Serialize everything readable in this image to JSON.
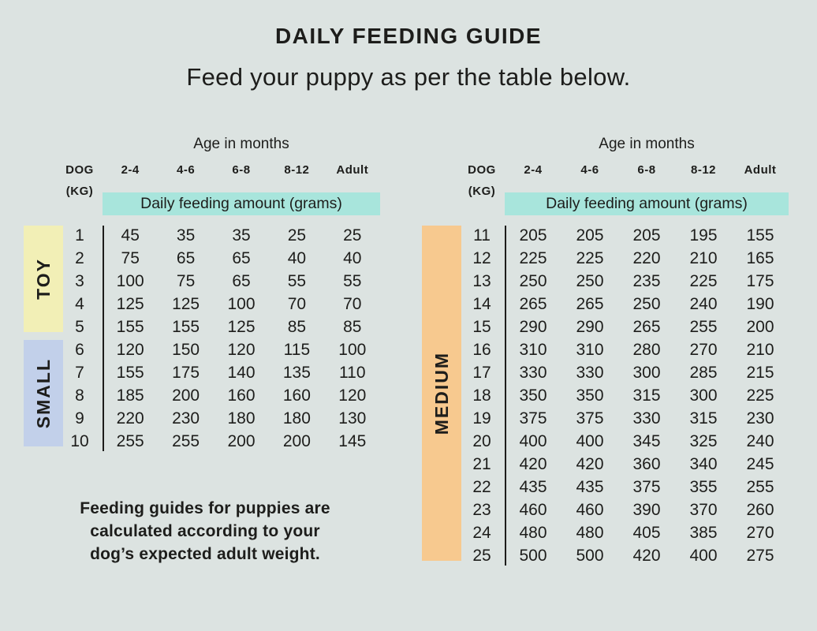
{
  "header": {
    "title": "DAILY FEEDING GUIDE",
    "subtitle": "Feed your puppy as per the table below."
  },
  "footer": {
    "lines": [
      "Feeding guides for puppies are",
      "calculated according to your",
      "dog’s expected adult weight."
    ]
  },
  "colors": {
    "background": "#dce3e1",
    "text": "#1d1d1b",
    "banner_bg": "#a8e5dc",
    "toy_bg": "#f2efb6",
    "small_bg": "#c2d0ea",
    "medium_bg": "#f7c98f"
  },
  "chart_data": {
    "type": "table",
    "title": "DAILY FEEDING GUIDE",
    "subtitle": "Feed your puppy as per the table below.",
    "age_axis_label": "Age in months",
    "weight_column_label": "DOG",
    "weight_unit_label": "(KG)",
    "age_columns": [
      "2-4",
      "4-6",
      "6-8",
      "8-12",
      "Adult"
    ],
    "units_banner": "Daily feeding amount (grams)",
    "size_groups": [
      {
        "name": "TOY",
        "panel": "left",
        "color_key": "toy_bg",
        "rows": [
          {
            "kg": 1,
            "values": [
              45,
              35,
              35,
              25,
              25
            ]
          },
          {
            "kg": 2,
            "values": [
              75,
              65,
              65,
              40,
              40
            ]
          },
          {
            "kg": 3,
            "values": [
              100,
              75,
              65,
              55,
              55
            ]
          },
          {
            "kg": 4,
            "values": [
              125,
              125,
              100,
              70,
              70
            ]
          },
          {
            "kg": 5,
            "values": [
              155,
              155,
              125,
              85,
              85
            ]
          }
        ]
      },
      {
        "name": "SMALL",
        "panel": "left",
        "color_key": "small_bg",
        "rows": [
          {
            "kg": 6,
            "values": [
              120,
              150,
              120,
              115,
              100
            ]
          },
          {
            "kg": 7,
            "values": [
              155,
              175,
              140,
              135,
              110
            ]
          },
          {
            "kg": 8,
            "values": [
              185,
              200,
              160,
              160,
              120
            ]
          },
          {
            "kg": 9,
            "values": [
              220,
              230,
              180,
              180,
              130
            ]
          },
          {
            "kg": 10,
            "values": [
              255,
              255,
              200,
              200,
              145
            ]
          }
        ]
      },
      {
        "name": "MEDIUM",
        "panel": "right",
        "color_key": "medium_bg",
        "rows": [
          {
            "kg": 11,
            "values": [
              205,
              205,
              205,
              195,
              155
            ]
          },
          {
            "kg": 12,
            "values": [
              225,
              225,
              220,
              210,
              165
            ]
          },
          {
            "kg": 13,
            "values": [
              250,
              250,
              235,
              225,
              175
            ]
          },
          {
            "kg": 14,
            "values": [
              265,
              265,
              250,
              240,
              190
            ]
          },
          {
            "kg": 15,
            "values": [
              290,
              290,
              265,
              255,
              200
            ]
          },
          {
            "kg": 16,
            "values": [
              310,
              310,
              280,
              270,
              210
            ]
          },
          {
            "kg": 17,
            "values": [
              330,
              330,
              300,
              285,
              215
            ]
          },
          {
            "kg": 18,
            "values": [
              350,
              350,
              315,
              300,
              225
            ]
          },
          {
            "kg": 19,
            "values": [
              375,
              375,
              330,
              315,
              230
            ]
          },
          {
            "kg": 20,
            "values": [
              400,
              400,
              345,
              325,
              240
            ]
          },
          {
            "kg": 21,
            "values": [
              420,
              420,
              360,
              340,
              245
            ]
          },
          {
            "kg": 22,
            "values": [
              435,
              435,
              375,
              355,
              255
            ]
          },
          {
            "kg": 23,
            "values": [
              460,
              460,
              390,
              370,
              260
            ]
          },
          {
            "kg": 24,
            "values": [
              480,
              480,
              405,
              385,
              270
            ]
          },
          {
            "kg": 25,
            "values": [
              500,
              500,
              420,
              400,
              275
            ]
          }
        ]
      }
    ],
    "note": "Feeding guides for puppies are calculated according to your dog’s expected adult weight."
  }
}
